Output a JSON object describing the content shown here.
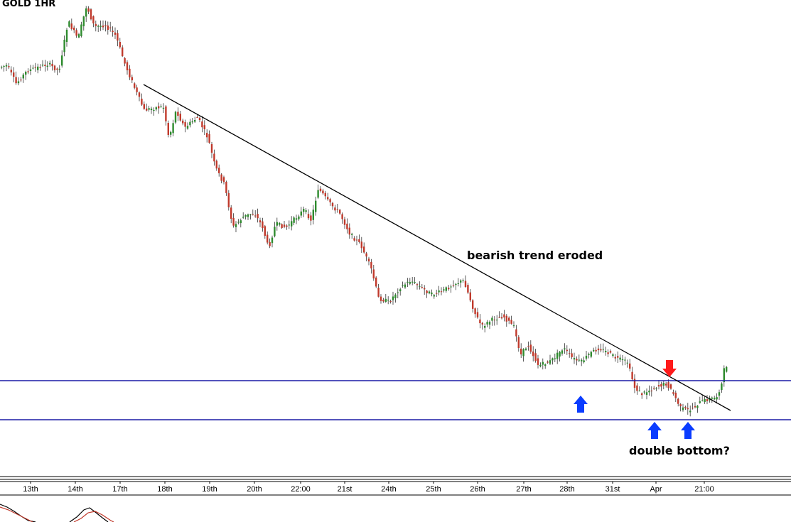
{
  "chart_data": {
    "type": "candlestick",
    "title": "GOLD 1HR",
    "x_ticks": [
      "13th",
      "14th",
      "17th",
      "18th",
      "19th",
      "20th",
      "22:00",
      "21st",
      "24th",
      "25th",
      "26th",
      "27th",
      "28th",
      "31st",
      "Apr",
      "21:00"
    ],
    "annotations": {
      "trend": "bearish trend eroded",
      "pattern": "double bottom?"
    },
    "colors": {
      "up_candle": "#2e8b2e",
      "down_candle": "#c0392b",
      "support_line": "#1a1aa6",
      "trend_line": "#000000",
      "buy_arrow": "#0a3cff",
      "sell_arrow": "#ff1a1a"
    },
    "series": [
      {
        "name": "",
        "note": "hourly price path (sampled)"
      }
    ]
  }
}
